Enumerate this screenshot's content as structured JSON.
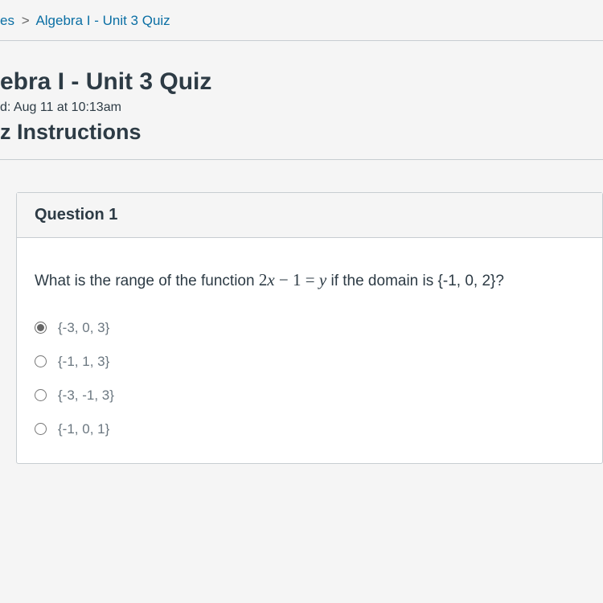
{
  "breadcrumb": {
    "prefix": "es",
    "separator": ">",
    "current": "Algebra I - Unit 3 Quiz"
  },
  "header": {
    "title": "ebra I - Unit 3 Quiz",
    "started_prefix": "d: ",
    "started_time": "Aug 11 at 10:13am",
    "instructions_title": "z Instructions"
  },
  "question": {
    "label": "Question 1",
    "text_before": "What is the range of the function ",
    "fn_2x": "2",
    "fn_x": "x",
    "fn_minus": " − ",
    "fn_1eq": "1 = ",
    "fn_y": "y",
    "text_after": " if the domain is {-1, 0, 2}?",
    "answers": [
      {
        "label": "{-3, 0, 3}",
        "selected": true
      },
      {
        "label": "{-1, 1, 3}",
        "selected": false
      },
      {
        "label": "{-3, -1, 3}",
        "selected": false
      },
      {
        "label": "{-1, 0, 1}",
        "selected": false
      }
    ]
  },
  "colors": {
    "link": "#0b6fa4",
    "text": "#2d3b45",
    "muted": "#6b7780",
    "border": "#c7cdd1",
    "bg": "#f5f5f5",
    "card_bg": "#ffffff"
  }
}
